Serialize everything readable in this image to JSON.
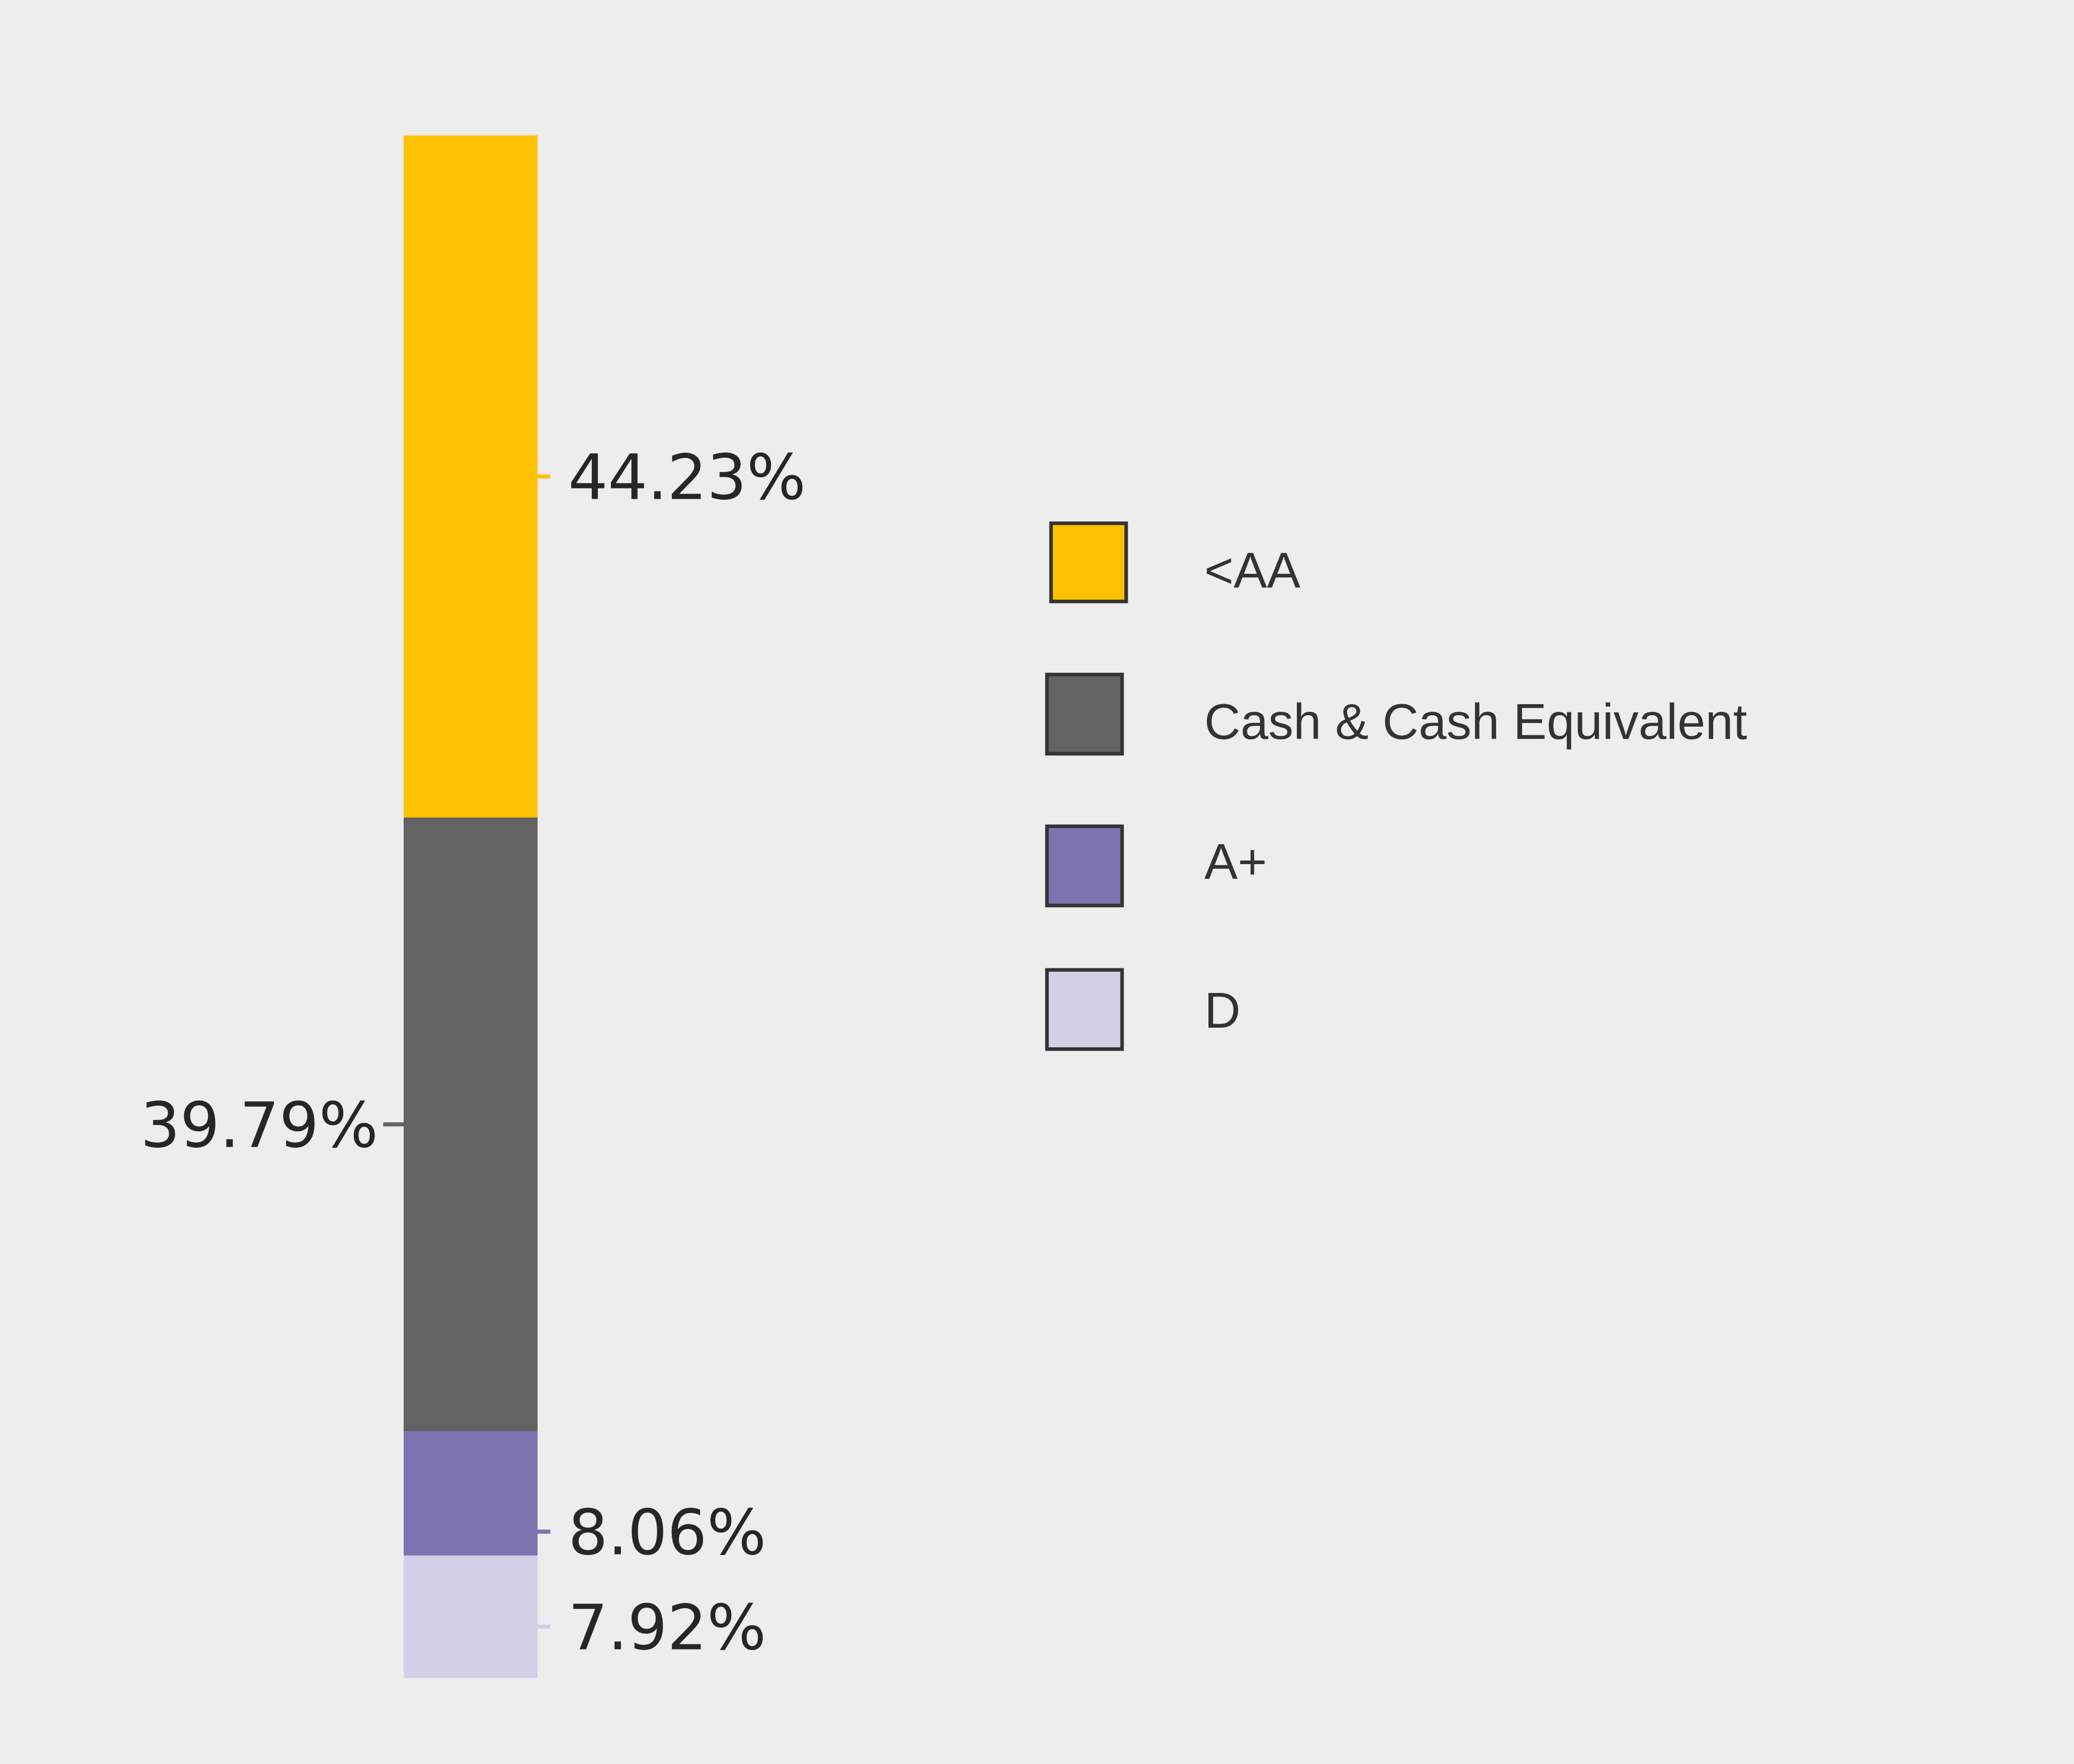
{
  "chart_data": {
    "type": "bar",
    "stacked": true,
    "orientation": "vertical",
    "categories": [
      "<AA",
      "Cash & Cash Equivalent",
      "A+",
      "D"
    ],
    "values": [
      44.23,
      39.79,
      8.06,
      7.92
    ],
    "labels": [
      "44.23%",
      "39.79%",
      "8.06%",
      "7.92%"
    ],
    "stack_order_top_to_bottom": [
      "<AA",
      "Cash & Cash Equivalent",
      "A+",
      "D"
    ],
    "colors": [
      "#ffc000",
      "#636363",
      "#7e73b1",
      "#d2cfe6"
    ],
    "total": 100,
    "title": "",
    "xlabel": "",
    "ylabel": "",
    "grid": false,
    "legend_position": "right"
  },
  "legend": {
    "items": [
      {
        "label": "<AA",
        "color": "#ffc000"
      },
      {
        "label": "Cash & Cash Equivalent",
        "color": "#636363"
      },
      {
        "label": "A+",
        "color": "#7e73b1"
      },
      {
        "label": "D",
        "color": "#d2cfe6"
      }
    ]
  },
  "colors": {
    "background": "#ecedec",
    "label_text": "#262626",
    "legend_text": "#333333",
    "swatch_border": "#333333"
  }
}
